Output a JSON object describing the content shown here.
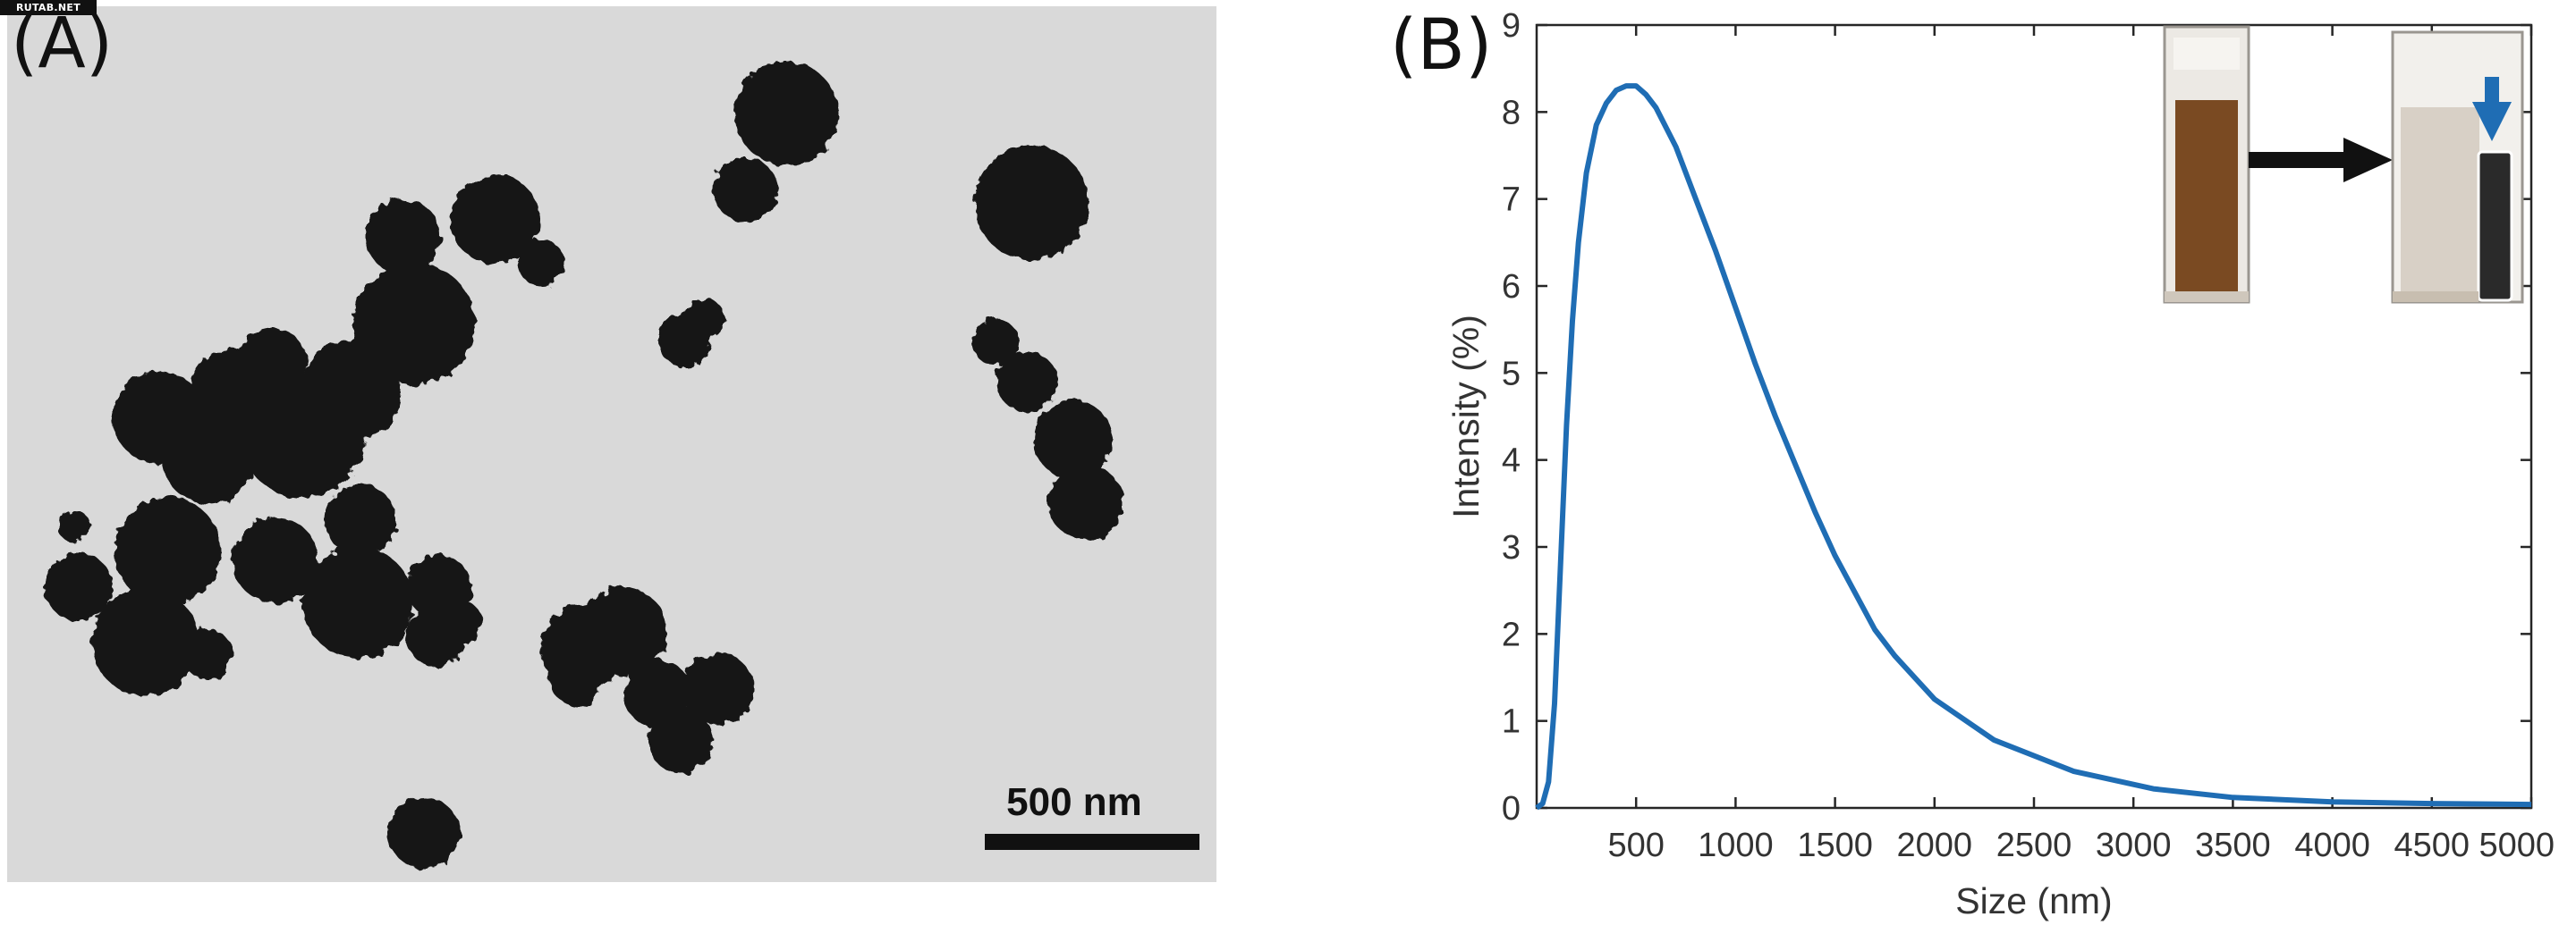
{
  "watermark": "RUTAB.NET",
  "panels": {
    "a_label": "(A)",
    "b_label": "(B)"
  },
  "tem": {
    "scale_bar_label": "500 nm",
    "background_color": "#d9d9d9",
    "particle_color": "#141414"
  },
  "chart_data": {
    "type": "line",
    "title": "",
    "xlabel": "Size (nm)",
    "ylabel": "Intensity (%)",
    "xlim": [
      0,
      5000
    ],
    "ylim": [
      0,
      9
    ],
    "xticks": [
      500,
      1000,
      1500,
      2000,
      2500,
      3000,
      3500,
      4000,
      4500,
      5000
    ],
    "yticks": [
      0,
      1,
      2,
      3,
      4,
      5,
      6,
      7,
      8,
      9
    ],
    "grid": false,
    "line_color": "#1f6db4",
    "series": [
      {
        "x": [
          0,
          30,
          60,
          90,
          120,
          150,
          180,
          210,
          250,
          300,
          350,
          400,
          450,
          500,
          550,
          600,
          700,
          800,
          900,
          1000,
          1100,
          1200,
          1300,
          1400,
          1500,
          1700,
          1800,
          2000,
          2300,
          2700,
          3100,
          3500,
          4000,
          4500,
          5000
        ],
        "y": [
          0,
          0.05,
          0.3,
          1.2,
          2.8,
          4.4,
          5.6,
          6.5,
          7.3,
          7.85,
          8.1,
          8.25,
          8.3,
          8.3,
          8.2,
          8.05,
          7.6,
          7.0,
          6.4,
          5.75,
          5.1,
          4.5,
          3.95,
          3.4,
          2.9,
          2.05,
          1.75,
          1.25,
          0.78,
          0.42,
          0.22,
          0.12,
          0.07,
          0.05,
          0.04
        ]
      }
    ]
  },
  "inset": {
    "arrow_color": "#111111",
    "down_arrow_color": "#1f6db4",
    "liquid_before_color": "#7a4a22",
    "liquid_after_color": "#d8d0c6",
    "magnet_color": "#2a2a2a"
  }
}
